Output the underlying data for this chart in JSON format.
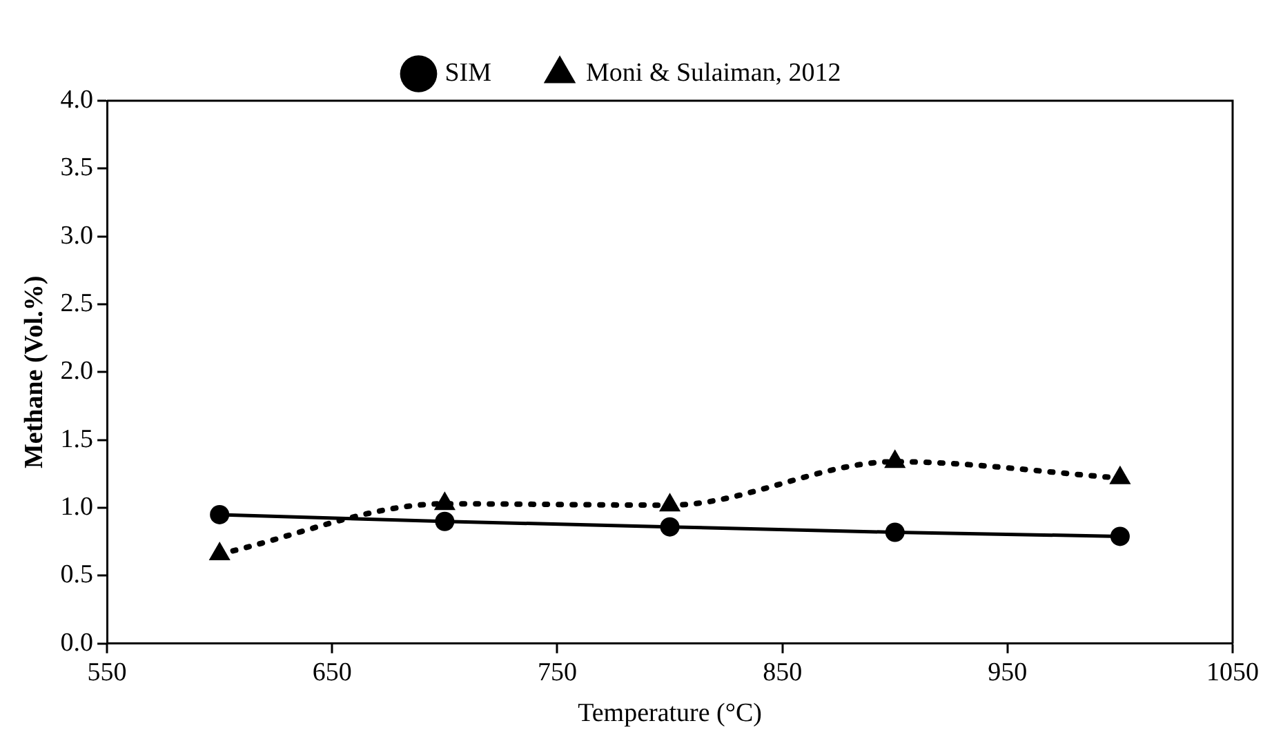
{
  "chart_data": {
    "type": "line",
    "xlabel": "Temperature (°C)",
    "ylabel": "Methane (Vol.%)",
    "x": [
      600,
      700,
      800,
      900,
      1000
    ],
    "series": [
      {
        "name": "SIM",
        "color": "#000000",
        "values": [
          0.95,
          0.9,
          0.86,
          0.82,
          0.79
        ],
        "marker": "circle",
        "line_style": "solid"
      },
      {
        "name": "Moni & Sulaiman, 2012",
        "color": "#000000",
        "values": [
          0.66,
          1.03,
          1.02,
          1.34,
          1.22
        ],
        "marker": "triangle",
        "line_style": "dotted"
      }
    ],
    "xlim": [
      550,
      1050
    ],
    "xticks": [
      550,
      650,
      750,
      850,
      950,
      1050
    ],
    "ylim": [
      0,
      4
    ],
    "yticks": [
      {
        "value": 0,
        "label": "0.0"
      },
      {
        "value": 0.5,
        "label": "0.5"
      },
      {
        "value": 1,
        "label": "1.0"
      },
      {
        "value": 1.5,
        "label": "1.5"
      },
      {
        "value": 2,
        "label": "2.0"
      },
      {
        "value": 2.5,
        "label": "2.5"
      },
      {
        "value": 3,
        "label": "3.0"
      },
      {
        "value": 3.5,
        "label": "3.5"
      },
      {
        "value": 4,
        "label": "4.0"
      }
    ],
    "grid": false,
    "legend": "top"
  }
}
